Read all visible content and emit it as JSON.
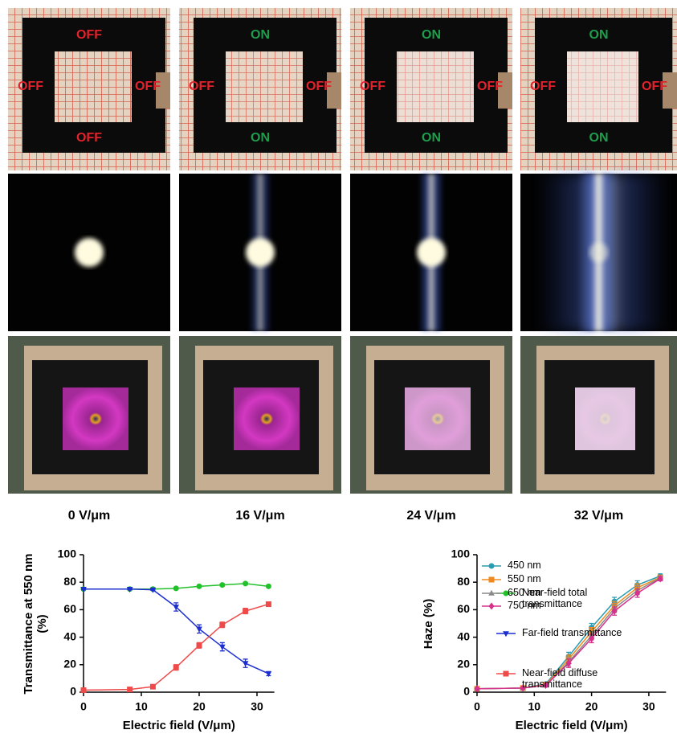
{
  "panels": [
    {
      "top": "OFF",
      "left": "OFF",
      "right": "OFF",
      "bottom": "OFF",
      "label": "0 V/μm"
    },
    {
      "top": "ON",
      "left": "OFF",
      "right": "OFF",
      "bottom": "ON",
      "label": "16 V/μm"
    },
    {
      "top": "ON",
      "left": "OFF",
      "right": "OFF",
      "bottom": "ON",
      "label": "24 V/μm"
    },
    {
      "top": "ON",
      "left": "OFF",
      "right": "OFF",
      "bottom": "ON",
      "label": "32 V/μm"
    }
  ],
  "label_colors": {
    "OFF": "#e3222b",
    "ON": "#1d9e4c"
  },
  "chart_data": [
    {
      "type": "line",
      "ylabel": "Transmittance at 550 nm (%)",
      "xlabel": "Electric field (V/μm)",
      "x": [
        0,
        8,
        12,
        16,
        20,
        24,
        28,
        32
      ],
      "xlim": [
        0,
        33
      ],
      "xticks": [
        0,
        10,
        20,
        30
      ],
      "ylim": [
        0,
        100
      ],
      "yticks": [
        0,
        20,
        40,
        60,
        80,
        100
      ],
      "legend": "right",
      "series": [
        {
          "name": "Near-field total transmittance",
          "color": "#22c12a",
          "marker": "circle",
          "values": [
            75,
            75,
            75,
            75.5,
            77,
            78,
            79,
            77
          ],
          "errors": [
            0.5,
            0.5,
            0.5,
            0.8,
            0.8,
            0.8,
            0.8,
            0.8
          ]
        },
        {
          "name": "Far-field transmittance",
          "color": "#1c2ed0",
          "marker": "triangle-down",
          "values": [
            75,
            75,
            74.5,
            62,
            46,
            33,
            21,
            13.5
          ],
          "errors": [
            0.5,
            0.5,
            0.5,
            3,
            3,
            3,
            3,
            1.5
          ]
        },
        {
          "name": "Near-field diffuse transmittance",
          "color": "#ef4a4a",
          "marker": "square",
          "values": [
            1.5,
            2,
            4,
            18,
            34,
            49,
            59,
            64
          ],
          "errors": [
            0.5,
            0.5,
            0.5,
            2,
            2,
            2,
            2,
            1.5
          ]
        }
      ]
    },
    {
      "type": "line",
      "ylabel": "Haze (%)",
      "xlabel": "Electric field (V/μm)",
      "x": [
        0,
        8,
        12,
        16,
        20,
        24,
        28,
        32
      ],
      "xlim": [
        0,
        33
      ],
      "xticks": [
        0,
        10,
        20,
        30
      ],
      "ylim": [
        0,
        100
      ],
      "yticks": [
        0,
        20,
        40,
        60,
        80,
        100
      ],
      "legend": "upper left",
      "series": [
        {
          "name": "450 nm",
          "color": "#2a9bb3",
          "marker": "circle",
          "values": [
            2.5,
            3,
            6,
            26,
            47,
            66,
            78,
            84.5
          ],
          "errors": [
            0.5,
            0.5,
            0.8,
            3,
            3,
            3,
            3,
            1.5
          ]
        },
        {
          "name": "550 nm",
          "color": "#f08a1e",
          "marker": "square",
          "values": [
            2.5,
            3,
            5.5,
            24,
            44,
            63,
            76,
            83.5
          ],
          "errors": [
            0.5,
            0.5,
            0.8,
            3,
            3,
            3,
            3,
            1.5
          ]
        },
        {
          "name": "650 nm",
          "color": "#8a8a8a",
          "marker": "triangle",
          "values": [
            2.5,
            3,
            5,
            22,
            41,
            61,
            74,
            83
          ],
          "errors": [
            0.5,
            0.5,
            0.8,
            3,
            3,
            3,
            3,
            1.5
          ]
        },
        {
          "name": "750 nm",
          "color": "#d62f8c",
          "marker": "diamond",
          "values": [
            2.5,
            3,
            5,
            21,
            39,
            59,
            72,
            82.5
          ],
          "errors": [
            0.5,
            0.5,
            0.8,
            3,
            3,
            3,
            3,
            1.5
          ]
        }
      ]
    }
  ]
}
